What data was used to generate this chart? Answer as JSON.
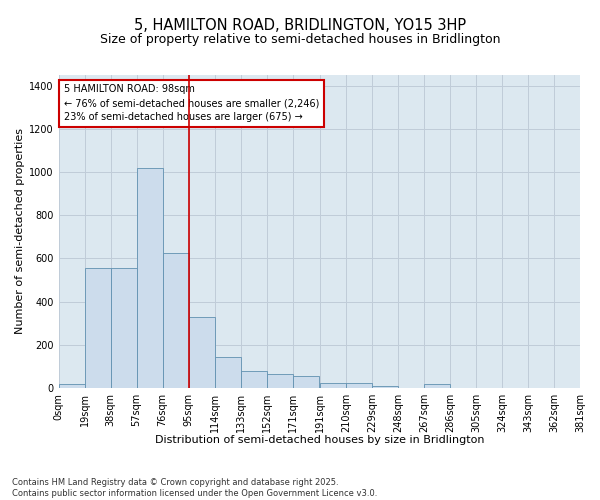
{
  "title": "5, HAMILTON ROAD, BRIDLINGTON, YO15 3HP",
  "subtitle": "Size of property relative to semi-detached houses in Bridlington",
  "xlabel": "Distribution of semi-detached houses by size in Bridlington",
  "ylabel": "Number of semi-detached properties",
  "annotation_title": "5 HAMILTON ROAD: 98sqm",
  "annotation_line1": "← 76% of semi-detached houses are smaller (2,246)",
  "annotation_line2": "23% of semi-detached houses are larger (675) →",
  "footer_line1": "Contains HM Land Registry data © Crown copyright and database right 2025.",
  "footer_line2": "Contains public sector information licensed under the Open Government Licence v3.0.",
  "bin_edges": [
    0,
    19,
    38,
    57,
    76,
    95,
    114,
    133,
    152,
    171,
    191,
    210,
    229,
    248,
    267,
    286,
    305,
    324,
    343,
    362,
    381
  ],
  "bin_labels": [
    "0sqm",
    "19sqm",
    "38sqm",
    "57sqm",
    "76sqm",
    "95sqm",
    "114sqm",
    "133sqm",
    "152sqm",
    "171sqm",
    "191sqm",
    "210sqm",
    "229sqm",
    "248sqm",
    "267sqm",
    "286sqm",
    "305sqm",
    "324sqm",
    "343sqm",
    "362sqm",
    "381sqm"
  ],
  "bar_heights": [
    20,
    555,
    555,
    1020,
    625,
    330,
    145,
    80,
    65,
    55,
    25,
    25,
    10,
    0,
    20,
    0,
    0,
    0,
    0,
    0
  ],
  "bar_color": "#ccdcec",
  "bar_edge_color": "#6090b0",
  "vline_x": 95,
  "vline_color": "#cc0000",
  "ylim": [
    0,
    1450
  ],
  "yticks": [
    0,
    200,
    400,
    600,
    800,
    1000,
    1200,
    1400
  ],
  "grid_color": "#c0ccd8",
  "bg_color": "#dce8f0",
  "annotation_box_color": "#cc0000",
  "title_fontsize": 10.5,
  "subtitle_fontsize": 9,
  "axis_label_fontsize": 8,
  "tick_fontsize": 7,
  "annotation_fontsize": 7,
  "footer_fontsize": 6
}
